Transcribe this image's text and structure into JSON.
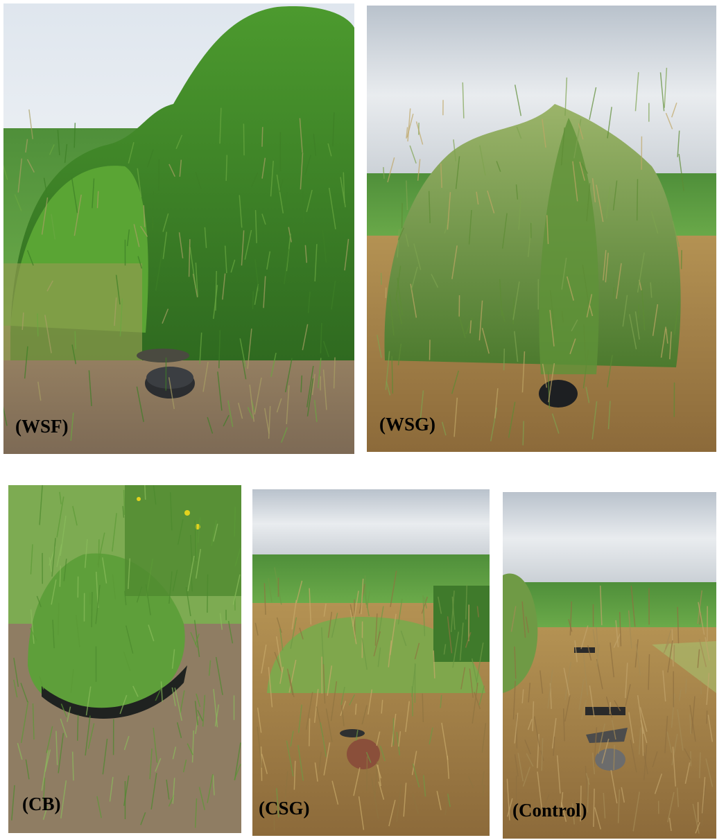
{
  "panels": [
    {
      "label": "(WSF)"
    },
    {
      "label": "(WSG)"
    },
    {
      "label": "(CB)"
    },
    {
      "label": "(CSG)"
    },
    {
      "label": "(Control)"
    }
  ]
}
